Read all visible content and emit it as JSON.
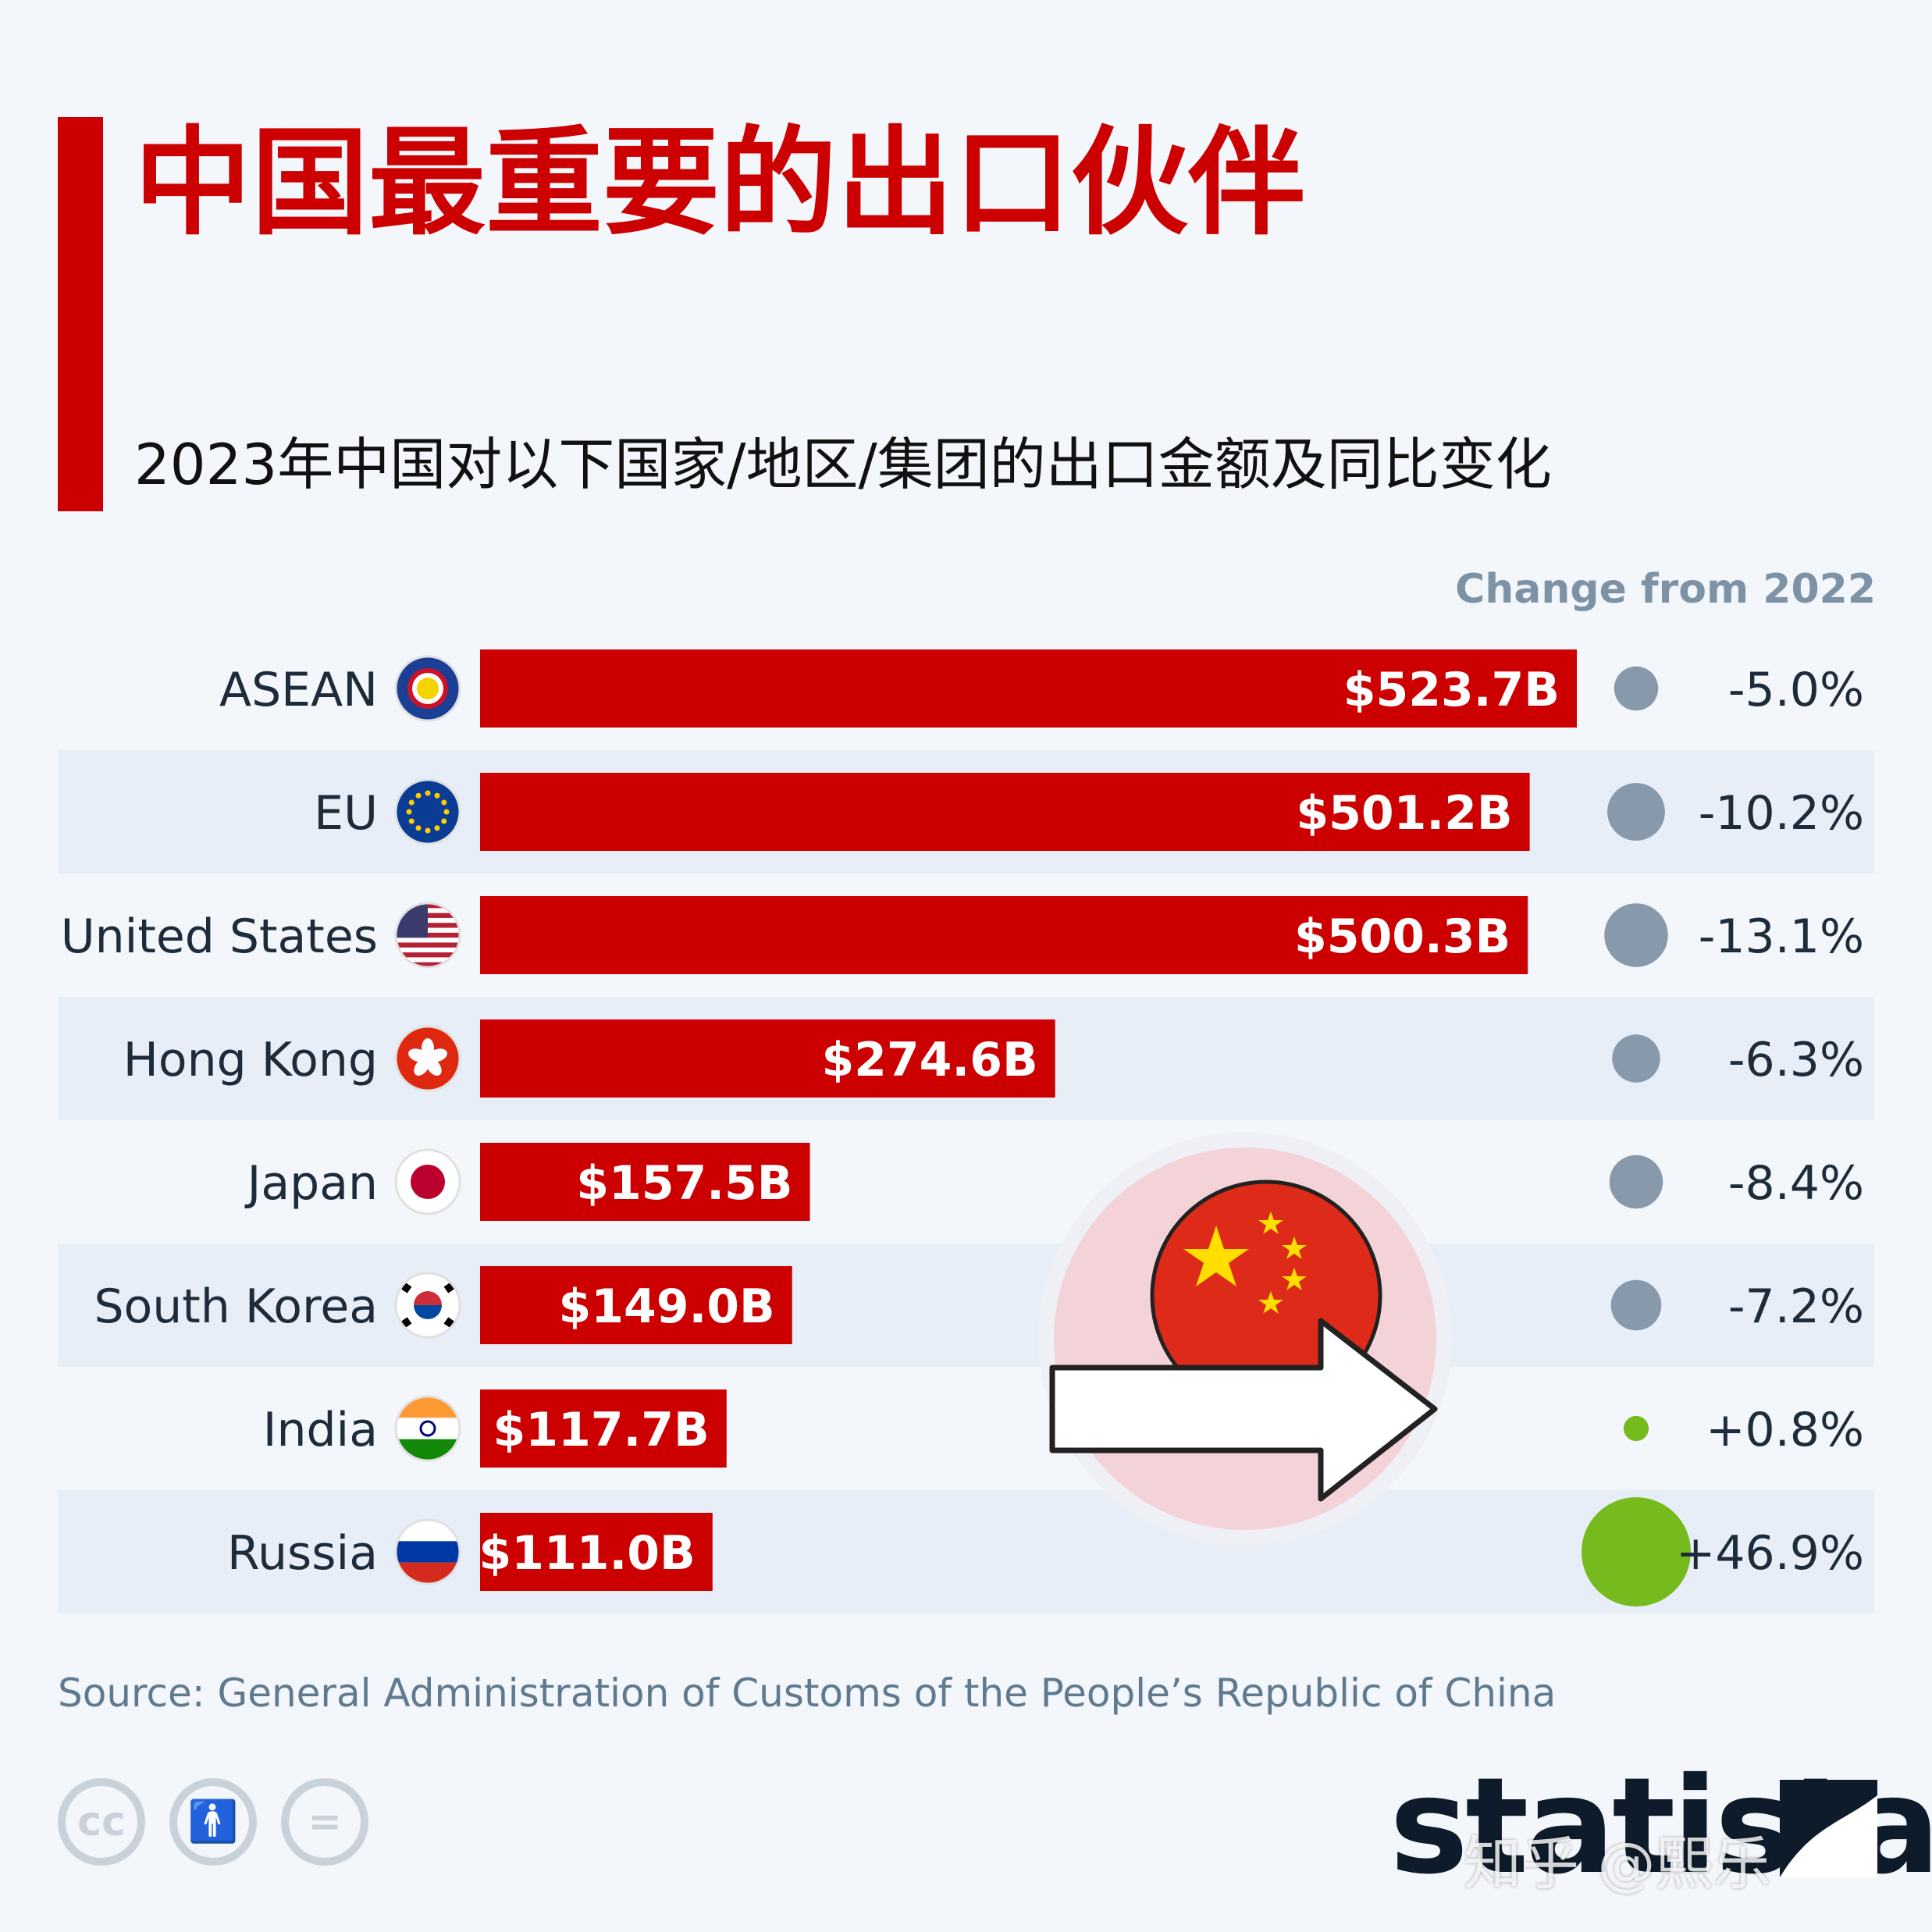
{
  "title": "中国最重要的出口伙伴",
  "subtitle": "2023年中国对以下国家/地区/集团的出口金额及同比变化",
  "change_header": "Change from 2022",
  "source": "Source: General Administration of Customs of the People’s Republic of China",
  "brand": "statista",
  "watermark": "知乎 @熙乐",
  "license_icons": [
    "cc-icon",
    "attribution-icon",
    "no-derivatives-icon"
  ],
  "colors": {
    "accent": "#cc0000",
    "negative_dot": "#8799aa",
    "positive_dot": "#76bb1d",
    "row_stripe": "#e8eef7"
  },
  "chart_data": {
    "type": "bar",
    "orientation": "horizontal",
    "unit": "USD billion",
    "categories": [
      "ASEAN",
      "EU",
      "United States",
      "Hong Kong",
      "Japan",
      "South Korea",
      "India",
      "Russia"
    ],
    "values": [
      523.7,
      501.2,
      500.3,
      274.6,
      157.5,
      149.0,
      117.7,
      111.0
    ],
    "value_labels": [
      "$523.7B",
      "$501.2B",
      "$500.3B",
      "$274.6B",
      "$157.5B",
      "$149.0B",
      "$117.7B",
      "$111.0B"
    ],
    "change_from_2022": [
      -5.0,
      -10.2,
      -13.1,
      -6.3,
      -8.4,
      -7.2,
      0.8,
      46.9
    ],
    "change_labels": [
      "-5.0%",
      "-10.2%",
      "-13.1%",
      "-6.3%",
      "-8.4%",
      "-7.2%",
      "+0.8%",
      "+46.9%"
    ],
    "flag_icons": [
      "asean-flag-icon",
      "eu-flag-icon",
      "us-flag-icon",
      "hong-kong-flag-icon",
      "japan-flag-icon",
      "south-korea-flag-icon",
      "india-flag-icon",
      "russia-flag-icon"
    ],
    "xlim": [
      0,
      523.7
    ]
  }
}
